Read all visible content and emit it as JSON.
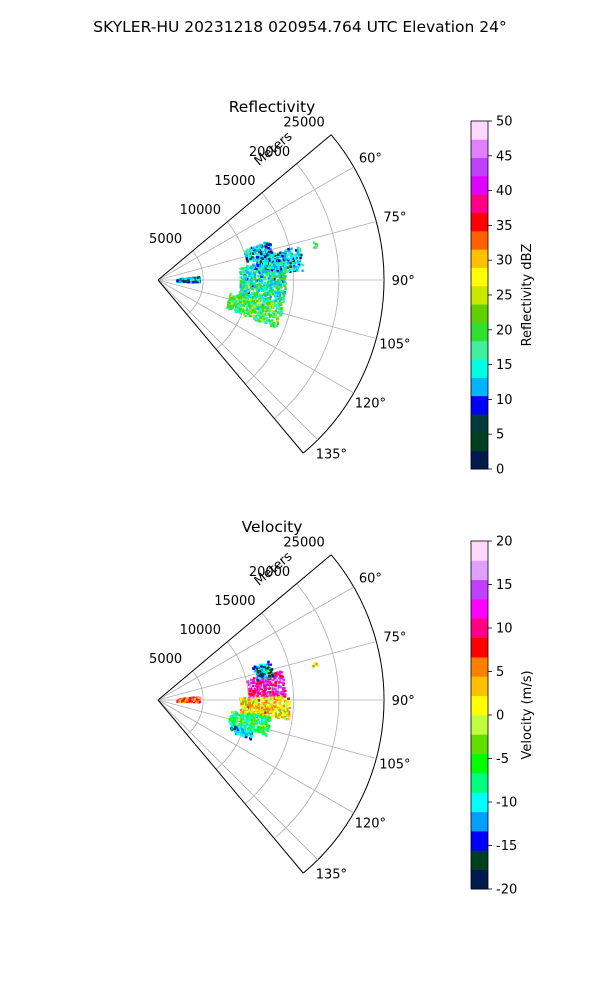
{
  "suptitle": "SKYLER-HU  20231218  020954.764 UTC Elevation 24°",
  "chart_data": [
    {
      "type": "heatmap",
      "subtype": "polar-sector",
      "title": "Reflectivity",
      "radial_label": "Meters",
      "radial_ticks": [
        "5000",
        "10000",
        "15000",
        "20000",
        "25000"
      ],
      "angle_ticks": [
        "60°",
        "75°",
        "90°",
        "105°",
        "120°",
        "135°"
      ],
      "theta_range_deg": [
        50,
        140
      ],
      "r_max_m": 25000,
      "grid": true,
      "colorbar": {
        "label": "Reflectivity dBZ",
        "ticks": [
          "0",
          "5",
          "10",
          "15",
          "20",
          "25",
          "30",
          "35",
          "40",
          "45",
          "50"
        ],
        "vmin": 0,
        "vmax": 50,
        "colors": [
          "#001a4d",
          "#004020",
          "#003c3c",
          "#0000ff",
          "#00b4ff",
          "#00ffe0",
          "#40f0a0",
          "#30e030",
          "#60d000",
          "#c8e800",
          "#ffff00",
          "#ffc000",
          "#ff6000",
          "#ff0000",
          "#ff0080",
          "#e000ff",
          "#c040ff",
          "#e080ff",
          "#ffd8ff"
        ]
      },
      "echoes": [
        {
          "range_m": [
            2000,
            4500
          ],
          "az_deg": [
            84,
            92
          ],
          "value": 11
        },
        {
          "range_m": [
            9000,
            14000
          ],
          "az_deg": [
            80,
            100
          ],
          "value": 16
        },
        {
          "range_m": [
            11000,
            16000
          ],
          "az_deg": [
            76,
            86
          ],
          "value": 13
        },
        {
          "range_m": [
            8000,
            14000
          ],
          "az_deg": [
            100,
            112
          ],
          "value": 19
        },
        {
          "range_m": [
            10000,
            13000
          ],
          "az_deg": [
            70,
            78
          ],
          "value": 12
        },
        {
          "range_m": [
            17500,
            18000
          ],
          "az_deg": [
            76,
            78
          ],
          "value": 18
        }
      ]
    },
    {
      "type": "heatmap",
      "subtype": "polar-sector",
      "title": "Velocity",
      "radial_label": "Meters",
      "radial_ticks": [
        "5000",
        "10000",
        "15000",
        "20000",
        "25000"
      ],
      "angle_ticks": [
        "60°",
        "75°",
        "90°",
        "105°",
        "120°",
        "135°"
      ],
      "theta_range_deg": [
        50,
        140
      ],
      "r_max_m": 25000,
      "grid": true,
      "colorbar": {
        "label": "Velocity (m/s)",
        "ticks": [
          "-20",
          "-15",
          "-10",
          "-5",
          "0",
          "5",
          "10",
          "15",
          "20"
        ],
        "vmin": -20,
        "vmax": 20,
        "colors": [
          "#001a4d",
          "#004020",
          "#0000ff",
          "#00a0ff",
          "#00ffff",
          "#00ff80",
          "#00ff00",
          "#60e000",
          "#c0ff40",
          "#ffff00",
          "#ffc000",
          "#ff8000",
          "#ff0000",
          "#ff0080",
          "#ff00ff",
          "#c040ff",
          "#e0a0ff",
          "#ffd8ff"
        ]
      },
      "echoes": [
        {
          "range_m": [
            2000,
            4500
          ],
          "az_deg": [
            84,
            92
          ],
          "value": 6
        },
        {
          "range_m": [
            10000,
            14000
          ],
          "az_deg": [
            76,
            88
          ],
          "value": 12
        },
        {
          "range_m": [
            11000,
            13000
          ],
          "az_deg": [
            70,
            78
          ],
          "value": -13
        },
        {
          "range_m": [
            9000,
            14500
          ],
          "az_deg": [
            88,
            98
          ],
          "value": 2
        },
        {
          "range_m": [
            8000,
            12500
          ],
          "az_deg": [
            98,
            108
          ],
          "value": -6
        },
        {
          "range_m": [
            8500,
            11000
          ],
          "az_deg": [
            108,
            113
          ],
          "value": -12
        },
        {
          "range_m": [
            17500,
            18000
          ],
          "az_deg": [
            76,
            78
          ],
          "value": 3
        }
      ]
    }
  ]
}
